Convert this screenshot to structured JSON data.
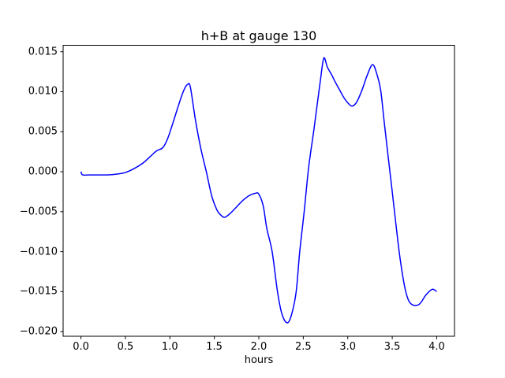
{
  "chart_data": {
    "type": "line",
    "title": "h+B at gauge 130",
    "xlabel": "hours",
    "ylabel": "",
    "xlim": [
      -0.2,
      4.2
    ],
    "ylim": [
      -0.0206,
      0.0158
    ],
    "grid": false,
    "legend": null,
    "axes_background": "#ffffff",
    "spine_color": "#000000",
    "x_ticks": {
      "values": [
        0.0,
        0.5,
        1.0,
        1.5,
        2.0,
        2.5,
        3.0,
        3.5,
        4.0
      ],
      "labels": [
        "0.0",
        "0.5",
        "1.0",
        "1.5",
        "2.0",
        "2.5",
        "3.0",
        "3.5",
        "4.0"
      ]
    },
    "y_ticks": {
      "values": [
        0.015,
        0.01,
        0.005,
        0.0,
        -0.005,
        -0.01,
        -0.015,
        -0.02
      ],
      "labels": [
        "0.015",
        "0.010",
        "0.005",
        "0.000",
        "−0.005",
        "−0.010",
        "−0.015",
        "−0.020"
      ]
    },
    "series": [
      {
        "name": "h+B",
        "color": "#0000ff",
        "line_width": 1.5,
        "x": [
          0.0,
          0.02,
          0.1,
          0.2,
          0.3,
          0.4,
          0.5,
          0.6,
          0.7,
          0.78,
          0.85,
          0.92,
          0.97,
          1.02,
          1.08,
          1.13,
          1.17,
          1.2,
          1.23,
          1.29,
          1.35,
          1.41,
          1.47,
          1.53,
          1.58,
          1.62,
          1.68,
          1.75,
          1.82,
          1.89,
          1.96,
          2.0,
          2.05,
          2.09,
          2.15,
          2.21,
          2.26,
          2.32,
          2.37,
          2.42,
          2.46,
          2.51,
          2.56,
          2.62,
          2.66,
          2.69,
          2.73,
          2.77,
          2.82,
          2.86,
          2.91,
          2.96,
          3.01,
          3.05,
          3.1,
          3.16,
          3.22,
          3.28,
          3.33,
          3.37,
          3.41,
          3.45,
          3.5,
          3.55,
          3.59,
          3.64,
          3.68,
          3.72,
          3.78,
          3.82,
          3.88,
          3.95,
          4.0
        ],
        "y": [
          0.0,
          -0.0004,
          -0.0004,
          -0.0004,
          -0.0004,
          -0.0003,
          -0.0001,
          0.0004,
          0.0011,
          0.0019,
          0.0026,
          0.003,
          0.004,
          0.0056,
          0.0077,
          0.0094,
          0.0105,
          0.0109,
          0.0106,
          0.0063,
          0.0028,
          0.0,
          -0.003,
          -0.0048,
          -0.0055,
          -0.0057,
          -0.0052,
          -0.0044,
          -0.0036,
          -0.003,
          -0.0027,
          -0.0028,
          -0.0043,
          -0.0071,
          -0.01,
          -0.015,
          -0.0178,
          -0.0189,
          -0.0178,
          -0.015,
          -0.01,
          -0.005,
          0.0005,
          0.0053,
          0.0087,
          0.0112,
          0.0142,
          0.0131,
          0.0121,
          0.0112,
          0.0102,
          0.0092,
          0.0085,
          0.0082,
          0.0087,
          0.0102,
          0.0121,
          0.0134,
          0.0121,
          0.0102,
          0.0062,
          0.0023,
          -0.0025,
          -0.0074,
          -0.011,
          -0.0144,
          -0.016,
          -0.0166,
          -0.0167,
          -0.0164,
          -0.0154,
          -0.0147,
          -0.015
        ]
      }
    ]
  }
}
